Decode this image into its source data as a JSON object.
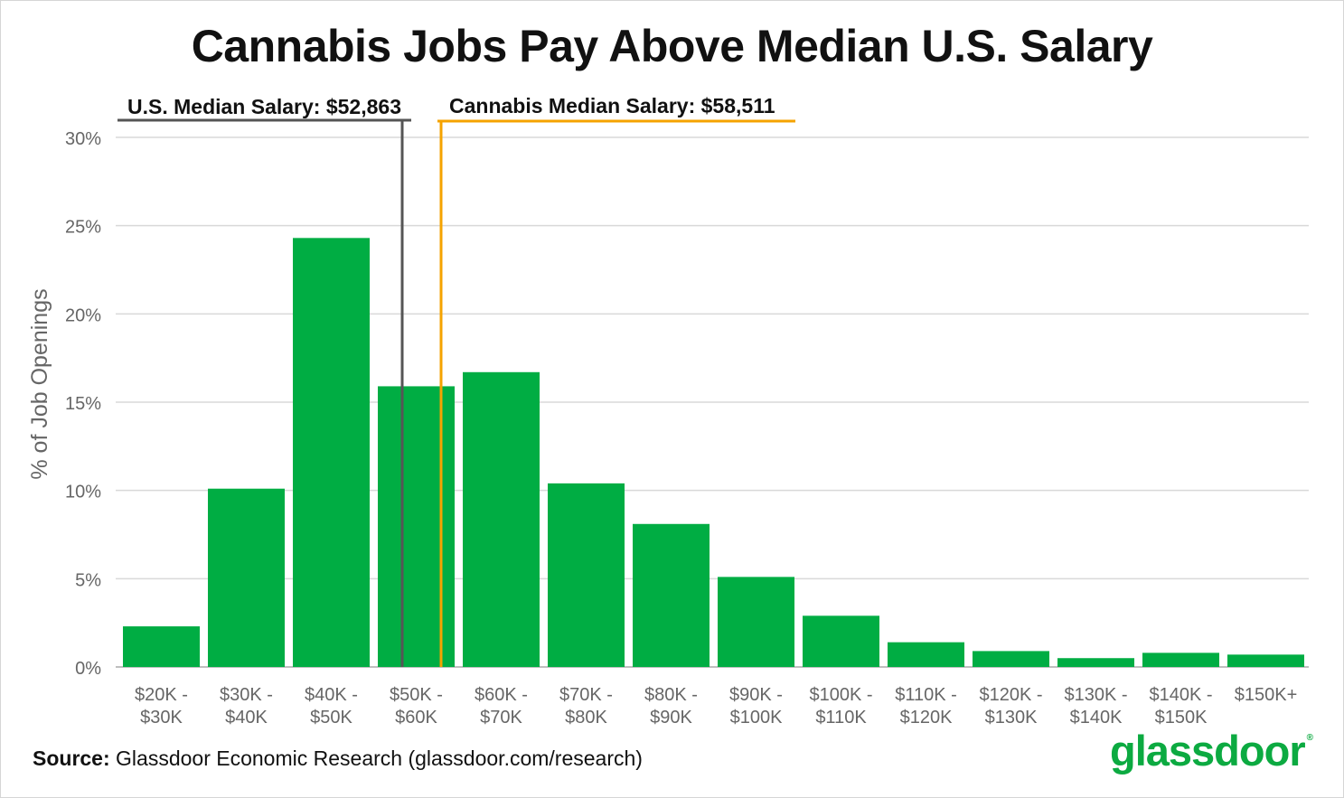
{
  "chart_data": {
    "type": "bar",
    "title": "Cannabis Jobs Pay Above Median U.S. Salary",
    "ylabel": "% of Job Openings",
    "xlabel": "",
    "ylim": [
      0,
      30
    ],
    "yticks": [
      "0%",
      "5%",
      "10%",
      "15%",
      "20%",
      "25%",
      "30%"
    ],
    "ytick_values": [
      0,
      5,
      10,
      15,
      20,
      25,
      30
    ],
    "categories": [
      [
        "$20K -",
        "$30K"
      ],
      [
        "$30K -",
        "$40K"
      ],
      [
        "$40K -",
        "$50K"
      ],
      [
        "$50K -",
        "$60K"
      ],
      [
        "$60K -",
        "$70K"
      ],
      [
        "$70K -",
        "$80K"
      ],
      [
        "$80K -",
        "$90K"
      ],
      [
        "$90K -",
        "$100K"
      ],
      [
        "$100K -",
        "$110K"
      ],
      [
        "$110K -",
        "$120K"
      ],
      [
        "$120K -",
        "$130K"
      ],
      [
        "$130K -",
        "$140K"
      ],
      [
        "$140K -",
        "$150K"
      ],
      [
        "$150K+"
      ]
    ],
    "values": [
      2.3,
      10.1,
      24.3,
      15.9,
      16.7,
      10.4,
      8.1,
      5.1,
      2.9,
      1.4,
      0.9,
      0.5,
      0.8,
      0.7
    ],
    "bar_color": "#00ad43",
    "grid": true,
    "reference_lines": [
      {
        "label": "U.S. Median Salary: $52,863",
        "salary": 52863,
        "color": "#555555"
      },
      {
        "label": "Cannabis Median Salary: $58,511",
        "salary": 58511,
        "color": "#f5a300"
      }
    ]
  },
  "source": {
    "prefix": "Source:",
    "text": "Glassdoor Economic Research (glassdoor.com/research)"
  },
  "logo": {
    "text": "glassdoor",
    "mark": "®",
    "color": "#0caa41"
  }
}
